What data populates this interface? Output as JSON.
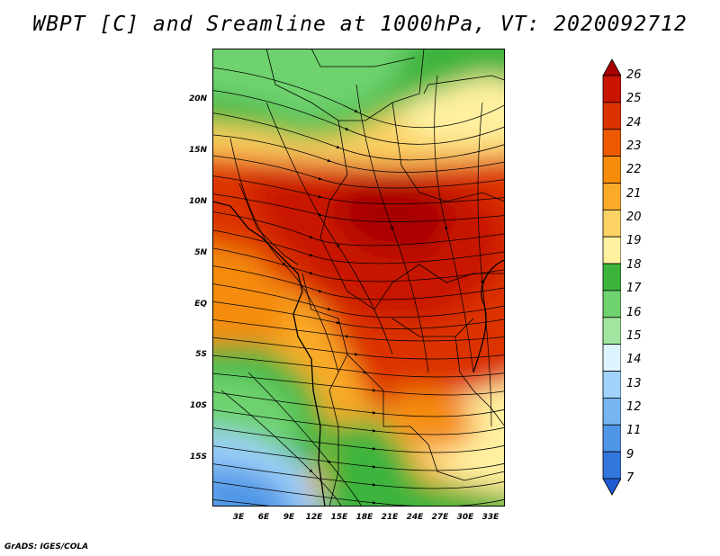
{
  "title": "WBPT [C] and Sreamline at 1000hPa, VT: 2020092712",
  "footer": "GrADS: IGES/COLA",
  "map": {
    "lat_labels": [
      "20N",
      "15N",
      "10N",
      "5N",
      "EQ",
      "5S",
      "10S",
      "15S"
    ],
    "lon_labels": [
      "3E",
      "6E",
      "9E",
      "12E",
      "15E",
      "18E",
      "21E",
      "24E",
      "27E",
      "30E",
      "33E"
    ]
  },
  "colorbar": {
    "labels": [
      "26",
      "25",
      "24",
      "23",
      "22",
      "21",
      "20",
      "19",
      "18",
      "17",
      "16",
      "15",
      "14",
      "13",
      "12",
      "11",
      "9",
      "7"
    ],
    "colors": [
      "#a80000",
      "#c81400",
      "#dc3200",
      "#eb5a00",
      "#f58c0a",
      "#faaa28",
      "#fcd264",
      "#fff0a0",
      "#3cb43c",
      "#6ed26e",
      "#a0e6a0",
      "#dcf5ff",
      "#a0d2fa",
      "#78b4f0",
      "#5096e6",
      "#3278dc",
      "#1e5ad2"
    ]
  }
}
